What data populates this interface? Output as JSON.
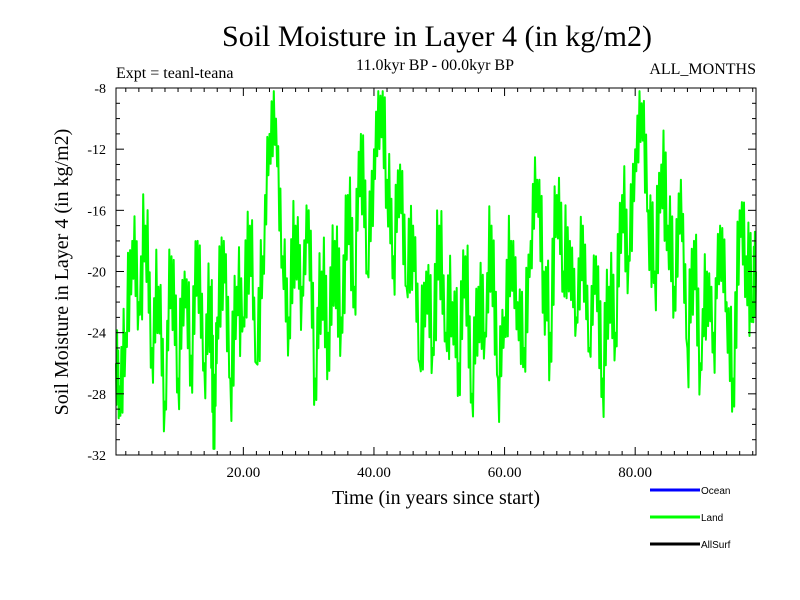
{
  "chart_data": {
    "type": "line",
    "title": "Soil Moisture in Layer 4 (in kg/m2)",
    "subtitle_left": "Expt = teanl-teana",
    "subtitle_center": "11.0kyr BP - 00.0kyr BP",
    "subtitle_right": "ALL_MONTHS",
    "xlabel": "Time (in years since start)",
    "ylabel": "Soil Moisture in Layer 4 (in kg/m2)",
    "xlim": [
      0.5,
      98.5
    ],
    "ylim": [
      -32,
      -8
    ],
    "x_ticks": [
      20,
      40,
      60,
      80
    ],
    "x_tick_labels": [
      "20.00",
      "40.00",
      "60.00",
      "80.00"
    ],
    "y_ticks": [
      -8,
      -12,
      -16,
      -20,
      -24,
      -28,
      -32
    ],
    "y_tick_labels": [
      "-8",
      "-12",
      "-16",
      "-20",
      "-24",
      "-28",
      "-32"
    ],
    "legend": [
      {
        "name": "Ocean",
        "color": "#0000ff"
      },
      {
        "name": "Land",
        "color": "#00ff00"
      },
      {
        "name": "AllSurf",
        "color": "#000000"
      }
    ],
    "series": [
      {
        "name": "Land",
        "color": "#00ff00",
        "x": [
          0.5,
          1,
          2,
          3,
          4,
          5,
          6,
          7,
          8,
          9,
          10,
          11,
          12,
          13,
          14,
          15,
          15.5,
          16,
          17,
          18,
          19,
          20,
          21,
          22,
          23,
          24,
          25,
          26,
          27,
          28,
          29,
          30,
          31,
          32,
          33,
          34,
          35,
          36,
          37,
          38,
          39,
          40,
          41,
          42,
          43,
          44,
          45,
          46,
          47,
          48,
          49,
          50,
          51,
          52,
          53,
          54,
          55,
          56,
          57,
          58,
          59,
          60,
          61,
          62,
          63,
          64,
          65,
          66,
          67,
          68,
          69,
          70,
          71,
          72,
          73,
          74,
          75,
          76,
          77,
          78,
          79,
          80,
          81,
          82,
          83,
          84,
          85,
          86,
          87,
          88,
          89,
          90,
          91,
          92,
          93,
          94,
          95,
          96,
          97,
          98,
          98.5
        ],
        "y": [
          -26,
          -27.5,
          -24,
          -18,
          -22,
          -17,
          -25,
          -21,
          -28.5,
          -19,
          -27,
          -20,
          -25.5,
          -18,
          -26,
          -21,
          -30.5,
          -23,
          -18,
          -27,
          -21,
          -23,
          -17,
          -26,
          -19,
          -11,
          -10,
          -19,
          -23,
          -17,
          -21,
          -16,
          -27,
          -20,
          -24,
          -18,
          -23,
          -15,
          -21,
          -11,
          -20,
          -12,
          -8.5,
          -14,
          -19,
          -13,
          -21,
          -17,
          -26,
          -20,
          -25,
          -17,
          -24,
          -22,
          -26,
          -19,
          -28,
          -21,
          -24,
          -17,
          -27,
          -23,
          -18,
          -22,
          -25,
          -18,
          -14,
          -20,
          -24,
          -15,
          -20,
          -18,
          -23,
          -17,
          -25,
          -19,
          -27,
          -21,
          -24,
          -15,
          -19,
          -12,
          -9,
          -16,
          -20,
          -13,
          -17,
          -21,
          -14,
          -25,
          -18,
          -26,
          -20,
          -24,
          -17,
          -22,
          -27,
          -16,
          -19,
          -22,
          -20
        ]
      }
    ]
  }
}
